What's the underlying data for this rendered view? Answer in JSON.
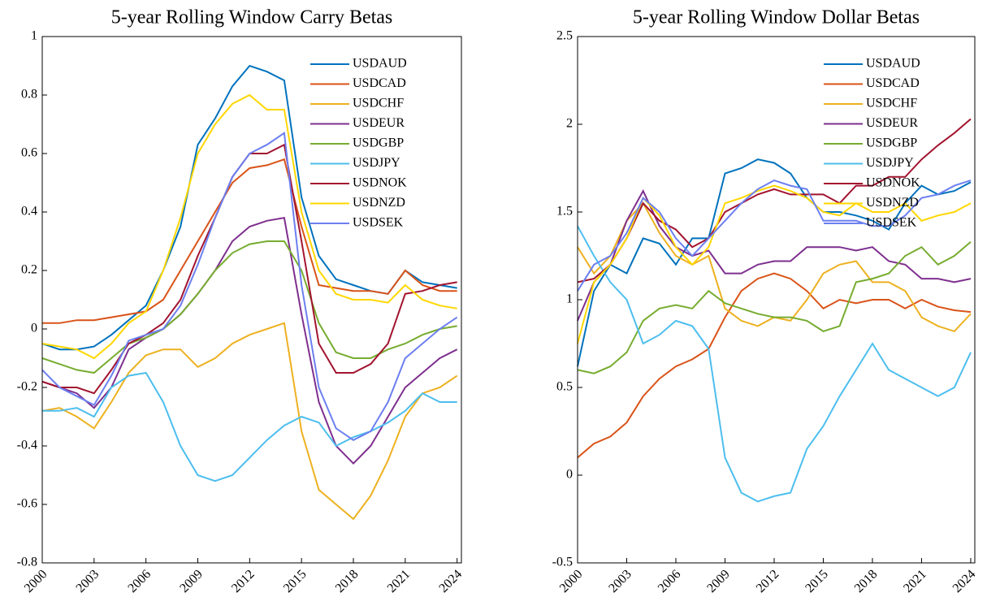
{
  "chart_data": [
    {
      "type": "line",
      "title": "5-year Rolling Window Carry Betas",
      "x": [
        2000,
        2001,
        2002,
        2003,
        2004,
        2005,
        2006,
        2007,
        2008,
        2009,
        2010,
        2011,
        2012,
        2013,
        2014,
        2015,
        2016,
        2017,
        2018,
        2019,
        2020,
        2021,
        2022,
        2023,
        2024
      ],
      "xlim": [
        2000,
        2024.25
      ],
      "xticks": [
        2000,
        2003,
        2006,
        2009,
        2012,
        2015,
        2018,
        2021,
        2024
      ],
      "ylim": [
        -0.8,
        1
      ],
      "yticks": [
        -0.8,
        -0.6,
        -0.4,
        -0.2,
        0,
        0.2,
        0.4,
        0.6,
        0.8,
        1
      ],
      "legend": "upper right",
      "series": [
        {
          "name": "USDAUD",
          "color": "#0072bd",
          "values": [
            -0.05,
            -0.07,
            -0.07,
            -0.06,
            -0.02,
            0.03,
            0.08,
            0.2,
            0.35,
            0.63,
            0.72,
            0.83,
            0.9,
            0.88,
            0.85,
            0.45,
            0.25,
            0.17,
            0.15,
            0.13,
            0.12,
            0.2,
            0.16,
            0.15,
            0.14
          ]
        },
        {
          "name": "USDCAD",
          "color": "#d95319",
          "values": [
            0.02,
            0.02,
            0.03,
            0.03,
            0.04,
            0.05,
            0.06,
            0.1,
            0.2,
            0.3,
            0.4,
            0.5,
            0.55,
            0.56,
            0.58,
            0.35,
            0.15,
            0.14,
            0.13,
            0.13,
            0.12,
            0.2,
            0.15,
            0.13,
            0.13
          ]
        },
        {
          "name": "USDCHF",
          "color": "#edb120",
          "values": [
            -0.28,
            -0.27,
            -0.3,
            -0.34,
            -0.25,
            -0.15,
            -0.09,
            -0.07,
            -0.07,
            -0.13,
            -0.1,
            -0.05,
            -0.02,
            0,
            0.02,
            -0.35,
            -0.55,
            -0.6,
            -0.65,
            -0.57,
            -0.45,
            -0.3,
            -0.22,
            -0.2,
            -0.16
          ]
        },
        {
          "name": "USDEUR",
          "color": "#7e2f8e",
          "values": [
            -0.18,
            -0.2,
            -0.22,
            -0.27,
            -0.2,
            -0.07,
            -0.03,
            0,
            0.05,
            0.12,
            0.2,
            0.3,
            0.35,
            0.37,
            0.38,
            0.05,
            -0.25,
            -0.4,
            -0.46,
            -0.4,
            -0.3,
            -0.2,
            -0.15,
            -0.1,
            -0.07
          ]
        },
        {
          "name": "USDGBP",
          "color": "#77ac30",
          "values": [
            -0.1,
            -0.12,
            -0.14,
            -0.15,
            -0.1,
            -0.05,
            -0.03,
            0,
            0.05,
            0.12,
            0.2,
            0.26,
            0.29,
            0.3,
            0.3,
            0.2,
            0.02,
            -0.08,
            -0.1,
            -0.1,
            -0.07,
            -0.05,
            -0.02,
            0,
            0.01
          ]
        },
        {
          "name": "USDJPY",
          "color": "#4dbeee",
          "values": [
            -0.28,
            -0.28,
            -0.27,
            -0.3,
            -0.2,
            -0.16,
            -0.15,
            -0.25,
            -0.4,
            -0.5,
            -0.52,
            -0.5,
            -0.44,
            -0.38,
            -0.33,
            -0.3,
            -0.32,
            -0.4,
            -0.37,
            -0.35,
            -0.32,
            -0.28,
            -0.22,
            -0.25,
            -0.25
          ]
        },
        {
          "name": "USDNOK",
          "color": "#a2142f",
          "values": [
            -0.18,
            -0.2,
            -0.2,
            -0.22,
            -0.14,
            -0.05,
            -0.02,
            0.02,
            0.1,
            0.25,
            0.38,
            0.52,
            0.6,
            0.6,
            0.63,
            0.3,
            -0.05,
            -0.15,
            -0.15,
            -0.12,
            -0.05,
            0.12,
            0.13,
            0.15,
            0.16
          ]
        },
        {
          "name": "USDNZD",
          "color": "#ffd700",
          "values": [
            -0.05,
            -0.06,
            -0.07,
            -0.1,
            -0.05,
            0.02,
            0.06,
            0.2,
            0.38,
            0.6,
            0.7,
            0.77,
            0.8,
            0.75,
            0.75,
            0.4,
            0.2,
            0.12,
            0.1,
            0.1,
            0.09,
            0.15,
            0.1,
            0.08,
            0.07
          ]
        },
        {
          "name": "USDSEK",
          "color": "#6c7ff0",
          "values": [
            -0.14,
            -0.2,
            -0.23,
            -0.26,
            -0.16,
            -0.04,
            -0.02,
            0,
            0.08,
            0.22,
            0.38,
            0.52,
            0.6,
            0.63,
            0.67,
            0.15,
            -0.2,
            -0.34,
            -0.38,
            -0.35,
            -0.25,
            -0.1,
            -0.05,
            0,
            0.04
          ]
        }
      ]
    },
    {
      "type": "line",
      "title": "5-year Rolling Window Dollar Betas",
      "x": [
        2000,
        2001,
        2002,
        2003,
        2004,
        2005,
        2006,
        2007,
        2008,
        2009,
        2010,
        2011,
        2012,
        2013,
        2014,
        2015,
        2016,
        2017,
        2018,
        2019,
        2020,
        2021,
        2022,
        2023,
        2024
      ],
      "xlim": [
        2000,
        2024.25
      ],
      "xticks": [
        2000,
        2003,
        2006,
        2009,
        2012,
        2015,
        2018,
        2021,
        2024
      ],
      "ylim": [
        -0.5,
        2.5
      ],
      "yticks": [
        -0.5,
        0,
        0.5,
        1,
        1.5,
        2,
        2.5
      ],
      "legend": "upper right",
      "series": [
        {
          "name": "USDAUD",
          "color": "#0072bd",
          "values": [
            0.62,
            1.05,
            1.2,
            1.15,
            1.35,
            1.32,
            1.2,
            1.35,
            1.35,
            1.72,
            1.75,
            1.8,
            1.78,
            1.72,
            1.58,
            1.5,
            1.5,
            1.48,
            1.45,
            1.4,
            1.55,
            1.65,
            1.6,
            1.62,
            1.67
          ]
        },
        {
          "name": "USDCAD",
          "color": "#d95319",
          "values": [
            0.1,
            0.18,
            0.22,
            0.3,
            0.45,
            0.55,
            0.62,
            0.66,
            0.72,
            0.9,
            1.05,
            1.12,
            1.15,
            1.12,
            1.05,
            0.95,
            1,
            0.98,
            1,
            1,
            0.95,
            1,
            0.96,
            0.94,
            0.93
          ]
        },
        {
          "name": "USDCHF",
          "color": "#edb120",
          "values": [
            1.3,
            1.15,
            1.25,
            1.45,
            1.55,
            1.38,
            1.25,
            1.2,
            1.25,
            0.95,
            0.88,
            0.85,
            0.9,
            0.88,
            1,
            1.15,
            1.2,
            1.22,
            1.1,
            1.1,
            1.05,
            0.9,
            0.85,
            0.82,
            0.92
          ]
        },
        {
          "name": "USDEUR",
          "color": "#7e2f8e",
          "values": [
            0.88,
            1.1,
            1.2,
            1.45,
            1.62,
            1.42,
            1.3,
            1.25,
            1.28,
            1.15,
            1.15,
            1.2,
            1.22,
            1.22,
            1.3,
            1.3,
            1.3,
            1.28,
            1.3,
            1.22,
            1.2,
            1.12,
            1.12,
            1.1,
            1.12
          ]
        },
        {
          "name": "USDGBP",
          "color": "#77ac30",
          "values": [
            0.6,
            0.58,
            0.62,
            0.7,
            0.88,
            0.95,
            0.97,
            0.95,
            1.05,
            0.98,
            0.95,
            0.92,
            0.9,
            0.9,
            0.88,
            0.82,
            0.85,
            1.1,
            1.12,
            1.15,
            1.25,
            1.3,
            1.2,
            1.25,
            1.33
          ]
        },
        {
          "name": "USDJPY",
          "color": "#4dbeee",
          "values": [
            1.42,
            1.25,
            1.1,
            1,
            0.75,
            0.8,
            0.88,
            0.85,
            0.72,
            0.1,
            -0.1,
            -0.15,
            -0.12,
            -0.1,
            0.15,
            0.28,
            0.45,
            0.6,
            0.75,
            0.6,
            0.55,
            0.5,
            0.45,
            0.5,
            0.7
          ]
        },
        {
          "name": "USDNOK",
          "color": "#a2142f",
          "values": [
            1.1,
            1.12,
            1.2,
            1.35,
            1.55,
            1.45,
            1.4,
            1.3,
            1.35,
            1.5,
            1.55,
            1.6,
            1.63,
            1.6,
            1.6,
            1.6,
            1.55,
            1.65,
            1.65,
            1.7,
            1.7,
            1.8,
            1.88,
            1.95,
            2.03
          ]
        },
        {
          "name": "USDNZD",
          "color": "#ffd700",
          "values": [
            0.75,
            1.1,
            1.2,
            1.35,
            1.58,
            1.48,
            1.3,
            1.2,
            1.3,
            1.55,
            1.58,
            1.62,
            1.65,
            1.62,
            1.58,
            1.5,
            1.48,
            1.55,
            1.5,
            1.5,
            1.55,
            1.45,
            1.48,
            1.5,
            1.55
          ]
        },
        {
          "name": "USDSEK",
          "color": "#6c7ff0",
          "values": [
            1.05,
            1.2,
            1.25,
            1.38,
            1.58,
            1.5,
            1.35,
            1.25,
            1.35,
            1.45,
            1.55,
            1.63,
            1.68,
            1.65,
            1.63,
            1.45,
            1.45,
            1.45,
            1.42,
            1.42,
            1.48,
            1.58,
            1.6,
            1.65,
            1.68
          ]
        }
      ]
    }
  ]
}
